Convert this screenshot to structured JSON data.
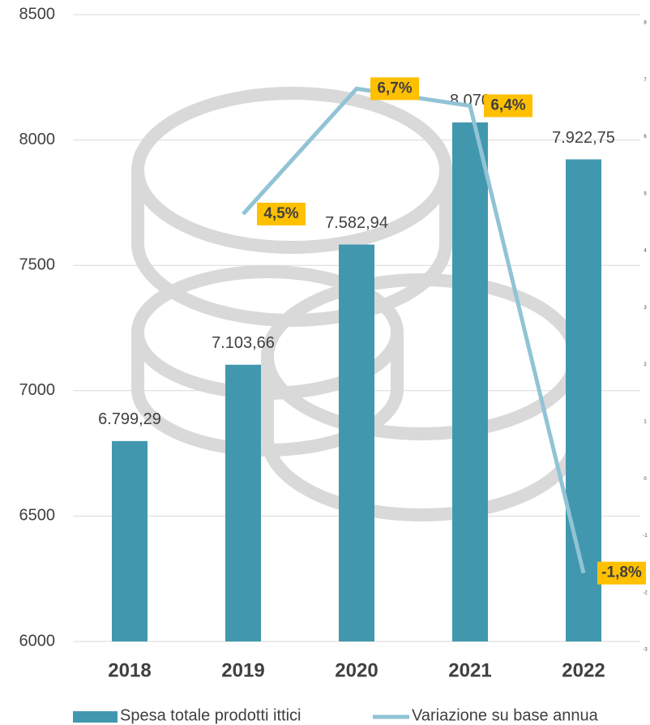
{
  "chart_data": {
    "type": "bar-line",
    "categories": [
      "2018",
      "2019",
      "2020",
      "2021",
      "2022"
    ],
    "series": [
      {
        "name": "Spesa totale prodotti ittici",
        "type": "bar",
        "color": "#4198ae",
        "values": [
          6799.29,
          7103.66,
          7582.94,
          8070,
          7922.75
        ],
        "value_labels": [
          "6.799,29",
          "7.103,66",
          "7.582,94",
          "8.070",
          "7.922,75"
        ]
      },
      {
        "name": "Variazione su base annua",
        "type": "line",
        "color": "#92c3d5",
        "axis": "y2",
        "values": [
          null,
          4.5,
          6.7,
          6.4,
          -1.8
        ],
        "value_labels": [
          null,
          "4,5%",
          "6,7%",
          "6,4%",
          "-1,8%"
        ]
      }
    ],
    "ylim": [
      6000,
      8500
    ],
    "yticks": [
      6000,
      6500,
      7000,
      7500,
      8000,
      8500
    ],
    "y2lim": [
      -3,
      8
    ],
    "y2ticks": [
      -3,
      -2,
      -1,
      0,
      1,
      2,
      3,
      4,
      5,
      6,
      7,
      8
    ],
    "grid": true,
    "legend": "bottom",
    "label_box_color": "#ffc000"
  }
}
